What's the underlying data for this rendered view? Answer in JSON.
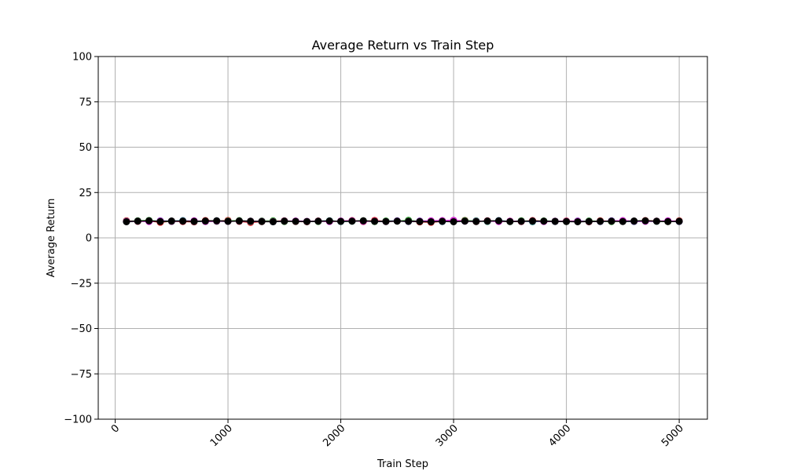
{
  "chart_data": {
    "type": "line",
    "title": "Average Return vs Train Step",
    "xlabel": "Train Step",
    "ylabel": "Average Return",
    "xlim": [
      -150,
      5250
    ],
    "ylim": [
      -100,
      100
    ],
    "xticks": [
      0,
      1000,
      2000,
      3000,
      4000,
      5000
    ],
    "xtick_labels": [
      "0",
      "1000",
      "2000",
      "3000",
      "4000",
      "5000"
    ],
    "yticks": [
      -100,
      -75,
      -50,
      -25,
      0,
      25,
      50,
      75,
      100
    ],
    "ytick_labels": [
      "−100",
      "−75",
      "−50",
      "−25",
      "0",
      "25",
      "50",
      "75",
      "100"
    ],
    "grid": true,
    "x": [
      100,
      200,
      300,
      400,
      500,
      600,
      700,
      800,
      900,
      1000,
      1100,
      1200,
      1300,
      1400,
      1500,
      1600,
      1700,
      1800,
      1900,
      2000,
      2100,
      2200,
      2300,
      2400,
      2500,
      2600,
      2700,
      2800,
      2900,
      3000,
      3100,
      3200,
      3300,
      3400,
      3500,
      3600,
      3700,
      3800,
      3900,
      4000,
      4100,
      4200,
      4300,
      4400,
      4500,
      4600,
      4700,
      4800,
      4900,
      5000
    ],
    "series": [
      {
        "color": "#e41a1c",
        "values": [
          9.4,
          9.1,
          9.3,
          8.6,
          9.2,
          9.0,
          8.8,
          9.5,
          9.3,
          9.6,
          9.1,
          8.5,
          9.0,
          9.2,
          9.4,
          9.0,
          8.9,
          9.3,
          9.1,
          9.2,
          9.5,
          9.0,
          9.6,
          9.1,
          9.3,
          9.2,
          8.8,
          8.6,
          9.1,
          9.3,
          9.6,
          9.0,
          9.4,
          9.1,
          9.2,
          9.0,
          9.5,
          9.1,
          9.0,
          9.3,
          9.2,
          8.9,
          9.4,
          9.1,
          9.3,
          9.0,
          9.5,
          9.2,
          9.0,
          9.4
        ]
      },
      {
        "color": "#377eb8",
        "values": [
          9.0,
          9.3,
          9.1,
          9.4,
          9.2,
          9.5,
          9.0,
          9.1,
          9.4,
          9.2,
          9.3,
          9.0,
          9.2,
          8.9,
          9.3,
          9.1,
          9.0,
          9.2,
          9.4,
          9.0,
          9.2,
          9.3,
          9.1,
          9.2,
          9.4,
          9.0,
          9.3,
          9.2,
          9.0,
          9.1,
          9.2,
          9.4,
          9.0,
          9.5,
          9.1,
          9.3,
          8.9,
          9.2,
          9.0,
          9.1,
          9.3,
          9.2,
          9.0,
          9.4,
          9.1,
          9.0,
          9.2,
          9.1,
          9.3,
          9.0
        ]
      },
      {
        "color": "#2ca02c",
        "values": [
          9.2,
          9.4,
          9.6,
          9.1,
          9.0,
          9.3,
          9.2,
          9.0,
          9.1,
          9.3,
          9.5,
          9.1,
          9.3,
          9.4,
          9.0,
          9.2,
          9.1,
          9.0,
          9.3,
          9.1,
          9.2,
          9.4,
          9.0,
          9.3,
          9.2,
          9.7,
          9.1,
          9.0,
          9.4,
          9.2,
          9.5,
          9.3,
          9.1,
          9.2,
          9.0,
          9.4,
          9.1,
          9.3,
          9.2,
          9.0,
          9.1,
          9.3,
          9.2,
          9.0,
          9.4,
          9.2,
          9.3,
          9.1,
          9.0,
          9.2
        ]
      },
      {
        "color": "#d62ad6",
        "values": [
          9.1,
          9.2,
          9.0,
          9.3,
          9.1,
          9.2,
          9.4,
          9.0,
          9.2,
          9.1,
          9.3,
          9.2,
          9.1,
          9.0,
          9.2,
          9.3,
          9.1,
          9.2,
          9.0,
          9.3,
          9.4,
          9.1,
          9.2,
          9.0,
          9.3,
          9.1,
          9.2,
          9.4,
          9.5,
          9.7,
          9.2,
          9.1,
          9.3,
          9.0,
          9.2,
          9.1,
          9.3,
          9.0,
          9.2,
          9.1,
          9.2,
          9.0,
          9.1,
          9.3,
          9.5,
          9.2,
          9.1,
          9.2,
          9.4,
          9.1
        ]
      },
      {
        "color": "#000000",
        "values": [
          8.9,
          9.2,
          9.4,
          9.0,
          9.3,
          9.2,
          9.1,
          9.3,
          9.4,
          9.1,
          9.3,
          9.2,
          9.0,
          8.9,
          9.2,
          9.1,
          9.0,
          9.2,
          9.3,
          9.1,
          9.2,
          9.4,
          9.1,
          9.0,
          9.2,
          9.1,
          9.0,
          8.9,
          9.1,
          8.9,
          9.2,
          9.0,
          9.3,
          9.4,
          9.0,
          9.1,
          9.3,
          9.2,
          9.1,
          9.0,
          8.9,
          9.0,
          9.1,
          9.2,
          9.0,
          9.3,
          9.4,
          9.2,
          9.0,
          9.1
        ]
      }
    ]
  }
}
